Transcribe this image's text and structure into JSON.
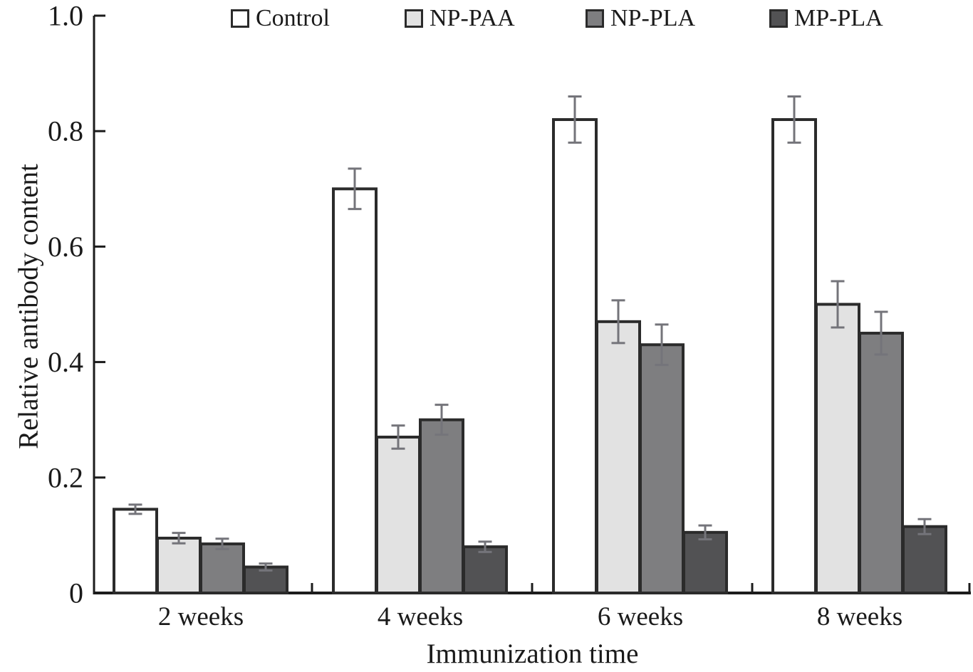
{
  "chart_data": {
    "type": "bar",
    "title": "",
    "xlabel": "Immunization time",
    "ylabel": "Relative antibody content",
    "ylim": [
      0,
      1.0
    ],
    "yticks": [
      0,
      0.2,
      0.4,
      0.6,
      0.8,
      1.0
    ],
    "ytick_labels": [
      "0",
      "0.2",
      "0.4",
      "0.6",
      "0.8",
      "1.0"
    ],
    "categories": [
      "2 weeks",
      "4 weeks",
      "6 weeks",
      "8 weeks"
    ],
    "series": [
      {
        "name": "Control",
        "color": "#ffffff",
        "values": [
          0.145,
          0.7,
          0.82,
          0.82
        ],
        "errors": [
          0.008,
          0.035,
          0.04,
          0.04
        ]
      },
      {
        "name": "NP-PAA",
        "color": "#e2e2e2",
        "values": [
          0.095,
          0.27,
          0.47,
          0.5
        ],
        "errors": [
          0.009,
          0.02,
          0.037,
          0.04
        ]
      },
      {
        "name": "NP-PLA",
        "color": "#7e7e80",
        "values": [
          0.085,
          0.3,
          0.43,
          0.45
        ],
        "errors": [
          0.009,
          0.026,
          0.035,
          0.037
        ]
      },
      {
        "name": "MP-PLA",
        "color": "#525254",
        "values": [
          0.045,
          0.08,
          0.105,
          0.115
        ],
        "errors": [
          0.006,
          0.009,
          0.012,
          0.013
        ]
      }
    ],
    "legend_position": "top",
    "grid": false,
    "colors": {
      "bar_border": "#2b2b2b",
      "error_bar": "#74747a",
      "axis": "#1c1c1c",
      "text": "#1a1a1a"
    }
  }
}
